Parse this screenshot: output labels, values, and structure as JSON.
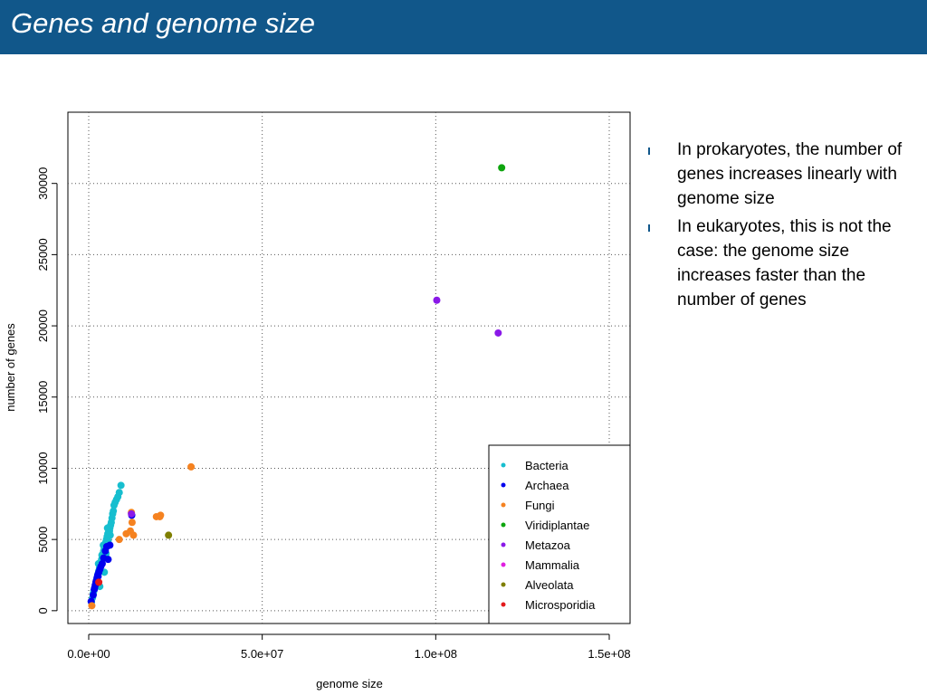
{
  "header": {
    "title": "Genes and genome size"
  },
  "bullets": [
    "In prokaryotes, the number of genes increases linearly with genome size",
    "In eukaryotes, this is not the case: the genome size increases faster than the number of genes"
  ],
  "colors": {
    "header_bg": "#11578a",
    "Bacteria": "#17becf",
    "Archaea": "#0000ee",
    "Fungi": "#f58220",
    "Viridiplantae": "#0ea50e",
    "Metazoa": "#8a19e8",
    "Mammalia": "#e01fe0",
    "Alveolata": "#7f7f00",
    "Microsporidia": "#e31a1c"
  },
  "chart_data": {
    "type": "scatter",
    "xlabel": "genome size",
    "ylabel": "number of genes",
    "xlim": [
      -6000000,
      156000000
    ],
    "ylim": [
      -900,
      35000
    ],
    "xticks": [
      0,
      50000000,
      100000000,
      150000000
    ],
    "xtick_labels": [
      "0.0e+00",
      "5.0e+07",
      "1.0e+08",
      "1.5e+08"
    ],
    "yticks": [
      0,
      5000,
      10000,
      15000,
      20000,
      25000,
      30000
    ],
    "ytick_labels": [
      "0",
      "5000",
      "10000",
      "15000",
      "20000",
      "25000",
      "30000"
    ],
    "grid": true,
    "legend_position": "bottom-right",
    "series": [
      {
        "name": "Bacteria",
        "x": [
          800000,
          1100000,
          1300000,
          1500000,
          1700000,
          1900000,
          2100000,
          2300000,
          2500000,
          2700000,
          2900000,
          3100000,
          3300000,
          3500000,
          3700000,
          3900000,
          4100000,
          4300000,
          4500000,
          4700000,
          4900000,
          5100000,
          5300000,
          5500000,
          5700000,
          5900000,
          6100000,
          6300000,
          6500000,
          6700000,
          6900000,
          7100000,
          7300000,
          7600000,
          8000000,
          8400000,
          8800000,
          9300000,
          3200000,
          4500000,
          5000000,
          5600000,
          6200000,
          6000000,
          5400000,
          4200000,
          3800000,
          2800000
        ],
        "y": [
          600,
          900,
          1200,
          1400,
          1600,
          1800,
          2000,
          2200,
          2400,
          2600,
          2800,
          3000,
          3200,
          3400,
          3600,
          3800,
          4000,
          4200,
          4400,
          4600,
          4800,
          5000,
          5200,
          5400,
          5500,
          5600,
          5800,
          6000,
          6200,
          6500,
          6800,
          7000,
          7400,
          7600,
          7800,
          8000,
          8300,
          8800,
          1700,
          2700,
          4000,
          4900,
          5300,
          5600,
          5800,
          4600,
          3900,
          3300
        ]
      },
      {
        "name": "Archaea",
        "x": [
          700000,
          1300000,
          1600000,
          1900000,
          2100000,
          2400000,
          2600000,
          2900000,
          3200000,
          3500000,
          3900000,
          4300000,
          4800000,
          5200000,
          5600000,
          6100000,
          1700000,
          2200000,
          2700000,
          12400000
        ],
        "y": [
          650,
          1100,
          1500,
          1800,
          2000,
          2300,
          2500,
          2700,
          2900,
          3100,
          3300,
          3700,
          4200,
          4500,
          3600,
          4600,
          1600,
          2100,
          2400,
          6700
        ]
      },
      {
        "name": "Fungi",
        "x": [
          900000,
          8800000,
          10800000,
          12000000,
          12300000,
          12500000,
          12900000,
          19500000,
          20700000,
          20500000,
          29500000
        ],
        "y": [
          350,
          5000,
          5400,
          5600,
          6900,
          6200,
          5300,
          6600,
          6700,
          6600,
          10100
        ]
      },
      {
        "name": "Viridiplantae",
        "x": [
          119000000
        ],
        "y": [
          31100
        ]
      },
      {
        "name": "Metazoa",
        "x": [
          100300000,
          118000000,
          12300000
        ],
        "y": [
          21800,
          19500,
          6800
        ]
      },
      {
        "name": "Mammalia",
        "x": [],
        "y": []
      },
      {
        "name": "Alveolata",
        "x": [
          23000000
        ],
        "y": [
          5300
        ]
      },
      {
        "name": "Microsporidia",
        "x": [
          2900000
        ],
        "y": [
          2000
        ]
      }
    ]
  }
}
